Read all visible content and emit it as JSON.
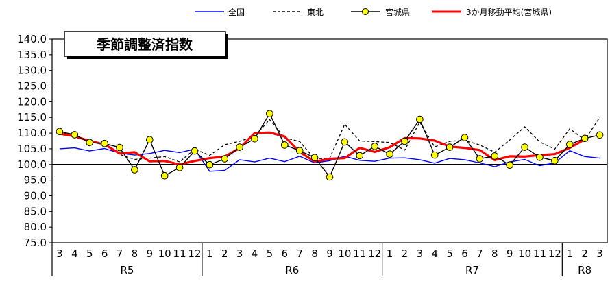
{
  "chart_data": {
    "type": "line",
    "title": "季節調整済指数",
    "ylim": [
      75.0,
      140.0
    ],
    "yticks": [
      "140.0",
      "135.0",
      "130.0",
      "125.0",
      "120.0",
      "115.0",
      "110.0",
      "105.0",
      "100.0",
      "95.0",
      "90.0",
      "85.0",
      "80.0",
      "75.0"
    ],
    "reference_line": 100.0,
    "grid": false,
    "legend_position": "top",
    "months": [
      "3",
      "4",
      "5",
      "6",
      "7",
      "8",
      "9",
      "10",
      "11",
      "12",
      "1",
      "2",
      "3",
      "4",
      "5",
      "6",
      "7",
      "8",
      "9",
      "10",
      "11",
      "12",
      "1",
      "2",
      "3",
      "4",
      "5",
      "6",
      "7",
      "8",
      "9",
      "10",
      "11",
      "12",
      "1",
      "2",
      "3"
    ],
    "eras": [
      {
        "label": "R5",
        "start": 0,
        "end": 9
      },
      {
        "label": "R6",
        "start": 10,
        "end": 21
      },
      {
        "label": "R7",
        "start": 22,
        "end": 33
      },
      {
        "label": "R8",
        "start": 34,
        "end": 36
      }
    ],
    "series": [
      {
        "name": "全国",
        "color": "#0000ff",
        "style": "solid",
        "values": [
          105.0,
          105.3,
          104.3,
          105.1,
          103.6,
          103.0,
          103.5,
          104.5,
          103.8,
          104.9,
          97.8,
          98.1,
          101.5,
          100.8,
          102.0,
          100.9,
          102.6,
          100.5,
          101.2,
          102.6,
          101.3,
          101.0,
          102.0,
          102.1,
          101.5,
          100.4,
          101.9,
          101.5,
          100.5,
          99.3,
          100.8,
          101.6,
          99.6,
          100.5,
          104.4,
          102.5,
          102.0
        ]
      },
      {
        "name": "東北",
        "color": "#000000",
        "style": "dashed",
        "values": [
          110.8,
          108.5,
          107.6,
          106.7,
          103.2,
          101.6,
          102.0,
          102.5,
          100.8,
          104.9,
          102.9,
          106.3,
          107.4,
          109.0,
          114.3,
          108.5,
          107.3,
          101.8,
          102.0,
          112.8,
          107.5,
          107.3,
          107.0,
          104.6,
          113.5,
          105.6,
          107.4,
          107.7,
          106.2,
          103.9,
          107.8,
          112.0,
          107.2,
          104.9,
          111.4,
          107.8,
          115.0
        ]
      },
      {
        "name": "宮城県",
        "color": "#000000",
        "style": "solid-marker",
        "marker_color": "#ffff00",
        "values": [
          110.5,
          109.5,
          107.0,
          106.7,
          105.4,
          98.3,
          107.9,
          96.4,
          99.0,
          104.3,
          99.9,
          101.8,
          105.5,
          108.2,
          116.2,
          106.2,
          104.4,
          102.2,
          96.0,
          107.2,
          102.8,
          105.8,
          103.3,
          107.4,
          114.4,
          103.0,
          105.5,
          108.6,
          101.8,
          102.7,
          99.8,
          105.5,
          102.3,
          101.2,
          106.4,
          108.3,
          109.4
        ]
      },
      {
        "name": "3か月移動平均(宮城県)",
        "color": "#ff0000",
        "style": "thick",
        "values": [
          109.8,
          109.0,
          107.5,
          106.4,
          103.5,
          103.9,
          101.0,
          101.1,
          100.0,
          101.1,
          102.0,
          102.5,
          105.2,
          110.0,
          110.2,
          108.9,
          104.0,
          100.9,
          101.8,
          102.0,
          105.3,
          104.0,
          105.5,
          108.4,
          108.3,
          107.6,
          105.7,
          105.3,
          104.6,
          101.4,
          102.6,
          102.5,
          103.0,
          103.3,
          105.3,
          108.0,
          null
        ]
      }
    ]
  }
}
